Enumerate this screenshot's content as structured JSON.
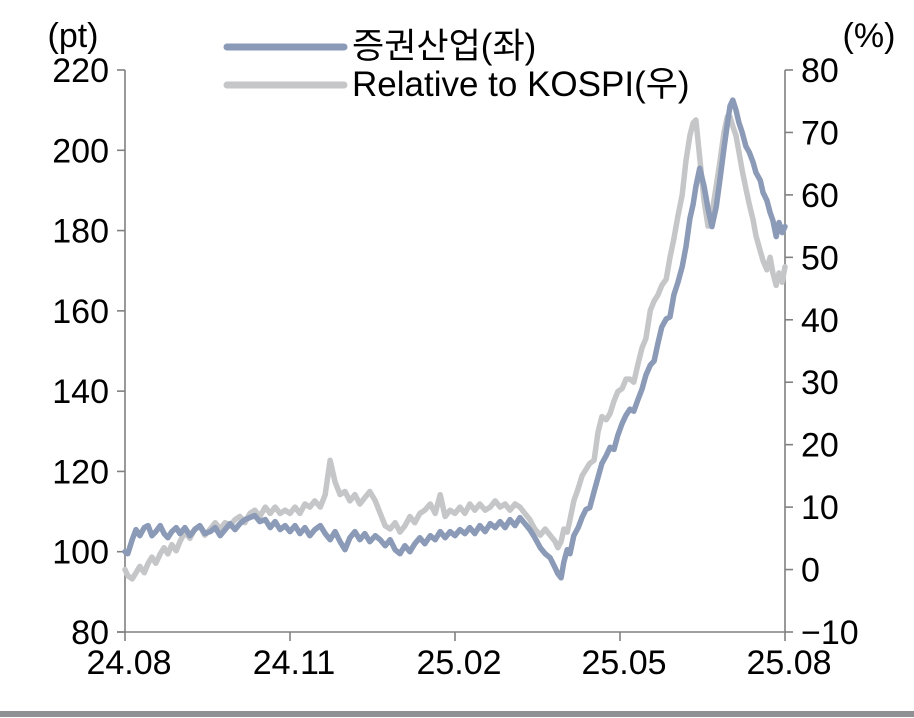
{
  "figure": {
    "left_unit": "(pt)",
    "right_unit": "(%)",
    "legend": [
      {
        "label": "증권산업(좌)",
        "color": "#8A9AB7"
      },
      {
        "label": "Relative to KOSPI(우)",
        "color": "#C5C6C8"
      }
    ],
    "styles": {
      "axis_color": "#808080",
      "text_color": "#000000",
      "series1_color": "#8A9AB7",
      "series2_color": "#C5C6C8",
      "divider_color": "#8F9093",
      "line_width": 5.5
    }
  },
  "chart_data": {
    "type": "line",
    "title": "",
    "legend_position": "top-center",
    "grid": false,
    "x_ticks": [
      {
        "m": 0,
        "label": "24.08"
      },
      {
        "m": 3,
        "label": "24.11"
      },
      {
        "m": 6,
        "label": "25.02"
      },
      {
        "m": 9,
        "label": "25.05"
      },
      {
        "m": 12,
        "label": "25.08"
      }
    ],
    "left_axis": {
      "unit": "(pt)",
      "min": 80,
      "max": 220,
      "ticks": [
        220,
        200,
        180,
        160,
        140,
        120,
        100,
        80
      ]
    },
    "right_axis": {
      "unit": "(%)",
      "min": -10,
      "max": 80,
      "ticks": [
        80,
        70,
        60,
        50,
        40,
        30,
        20,
        10,
        0,
        -10
      ]
    },
    "x_months": [
      0,
      0.05,
      0.13,
      0.2,
      0.27,
      0.35,
      0.42,
      0.49,
      0.56,
      0.64,
      0.71,
      0.78,
      0.85,
      0.93,
      1,
      1.09,
      1.18,
      1.27,
      1.36,
      1.45,
      1.55,
      1.64,
      1.73,
      1.82,
      1.91,
      2,
      2.09,
      2.18,
      2.27,
      2.36,
      2.45,
      2.55,
      2.64,
      2.73,
      2.82,
      2.91,
      3,
      3.09,
      3.18,
      3.27,
      3.36,
      3.45,
      3.55,
      3.64,
      3.73,
      3.82,
      3.91,
      4,
      4.09,
      4.18,
      4.27,
      4.36,
      4.45,
      4.55,
      4.64,
      4.73,
      4.82,
      4.91,
      5,
      5.09,
      5.18,
      5.27,
      5.36,
      5.45,
      5.55,
      5.64,
      5.73,
      5.82,
      5.91,
      6,
      6.09,
      6.18,
      6.27,
      6.36,
      6.45,
      6.55,
      6.64,
      6.73,
      6.82,
      6.91,
      7,
      7.09,
      7.18,
      7.27,
      7.36,
      7.45,
      7.55,
      7.64,
      7.73,
      7.82,
      7.87,
      7.93,
      7.98,
      8.04,
      8.09,
      8.16,
      8.24,
      8.31,
      8.38,
      8.45,
      8.53,
      8.6,
      8.67,
      8.75,
      8.82,
      8.89,
      8.96,
      9.04,
      9.11,
      9.18,
      9.25,
      9.33,
      9.4,
      9.47,
      9.55,
      9.62,
      9.69,
      9.76,
      9.84,
      9.91,
      9.98,
      10.05,
      10.13,
      10.2,
      10.27,
      10.33,
      10.38,
      10.45,
      10.53,
      10.6,
      10.67,
      10.75,
      10.82,
      10.89,
      10.95,
      11,
      11.05,
      11.11,
      11.16,
      11.22,
      11.29,
      11.35,
      11.42,
      11.47,
      11.55,
      11.6,
      11.67,
      11.73,
      11.78,
      11.84,
      11.89,
      11.95,
      12
    ],
    "series": [
      {
        "name": "증권산업(좌)",
        "axis": "left",
        "color": "#8A9AB7",
        "values": [
          100,
          99.5,
          103,
          105.5,
          104,
          106,
          106.5,
          104,
          105,
          106.5,
          104.5,
          103.5,
          105,
          106,
          104.5,
          106,
          104,
          105.5,
          106.5,
          104.5,
          105,
          106,
          104,
          105.5,
          107,
          105.5,
          107,
          108,
          108.5,
          109,
          107.5,
          108,
          106,
          107.5,
          105.5,
          106.5,
          105,
          106.5,
          104.5,
          106,
          104,
          105.5,
          106.5,
          104.5,
          103,
          105,
          102.5,
          100.5,
          103.5,
          105,
          103,
          104.5,
          102.5,
          104,
          103,
          101.5,
          103,
          100.5,
          99.5,
          101.5,
          100,
          102,
          103.5,
          102,
          104,
          103,
          105,
          103.5,
          105,
          104,
          105.5,
          104.5,
          106,
          104.5,
          106.5,
          105,
          107,
          106,
          107.5,
          106,
          108,
          106.5,
          108.5,
          107,
          105.5,
          103.5,
          101,
          99.5,
          98.5,
          96,
          94.5,
          93.5,
          97.5,
          100.5,
          99.5,
          104,
          106,
          108.5,
          110.5,
          111,
          115,
          118.5,
          122,
          124,
          126,
          125.5,
          129,
          132,
          134,
          135.5,
          135,
          138,
          140.5,
          144,
          146.5,
          147.5,
          152,
          156,
          158,
          158.5,
          164,
          167,
          171,
          176,
          183,
          186.5,
          191,
          195.5,
          191,
          185.5,
          181,
          186,
          193,
          200.5,
          206.5,
          211,
          212.5,
          210,
          207,
          204.5,
          201,
          199.5,
          197,
          194.5,
          192.5,
          189.5,
          187.5,
          184.5,
          182.5,
          178.5,
          182,
          179.5,
          181
        ]
      },
      {
        "name": "Relative to KOSPI(우)",
        "axis": "right",
        "color": "#C5C6C8",
        "values": [
          0,
          -1,
          -1.5,
          -0.5,
          0.5,
          -0.5,
          1,
          2,
          1,
          2.5,
          3.5,
          2.5,
          4,
          3,
          4.5,
          6,
          5,
          6.5,
          7,
          5.5,
          6.5,
          7.5,
          6.5,
          7.5,
          7,
          8,
          8.5,
          7.5,
          9,
          9.5,
          8.5,
          10,
          9,
          10,
          9,
          9.5,
          9,
          10,
          9,
          10.5,
          10,
          11,
          10,
          12,
          17.5,
          14,
          12,
          12.5,
          11,
          12,
          10.5,
          11.5,
          12.5,
          11,
          9,
          7,
          6.5,
          7.5,
          6,
          7,
          8.5,
          7.5,
          9,
          9.5,
          10.5,
          9,
          12,
          8.5,
          9.5,
          9,
          10,
          9,
          10.5,
          9.5,
          10.5,
          9.5,
          10,
          11,
          10,
          10.5,
          9.5,
          10.5,
          10,
          9,
          8,
          6.5,
          5.5,
          6.5,
          5.5,
          4.5,
          3.5,
          4.5,
          6.5,
          6,
          8,
          11,
          13,
          15,
          16,
          17,
          17.5,
          22,
          24.5,
          24,
          25,
          27,
          28.5,
          29,
          30.5,
          30.5,
          30,
          33,
          35.5,
          37,
          41.5,
          43,
          44,
          45.5,
          46.5,
          50,
          53,
          56.5,
          60,
          65.5,
          69.5,
          71.5,
          72,
          66,
          59,
          55,
          57,
          61.5,
          65.5,
          70,
          72.5,
          72.5,
          71,
          69.5,
          67,
          64,
          61,
          58.5,
          56,
          53.5,
          51,
          49.5,
          48,
          50,
          47.5,
          45.5,
          47.5,
          46,
          48.5
        ]
      }
    ]
  }
}
